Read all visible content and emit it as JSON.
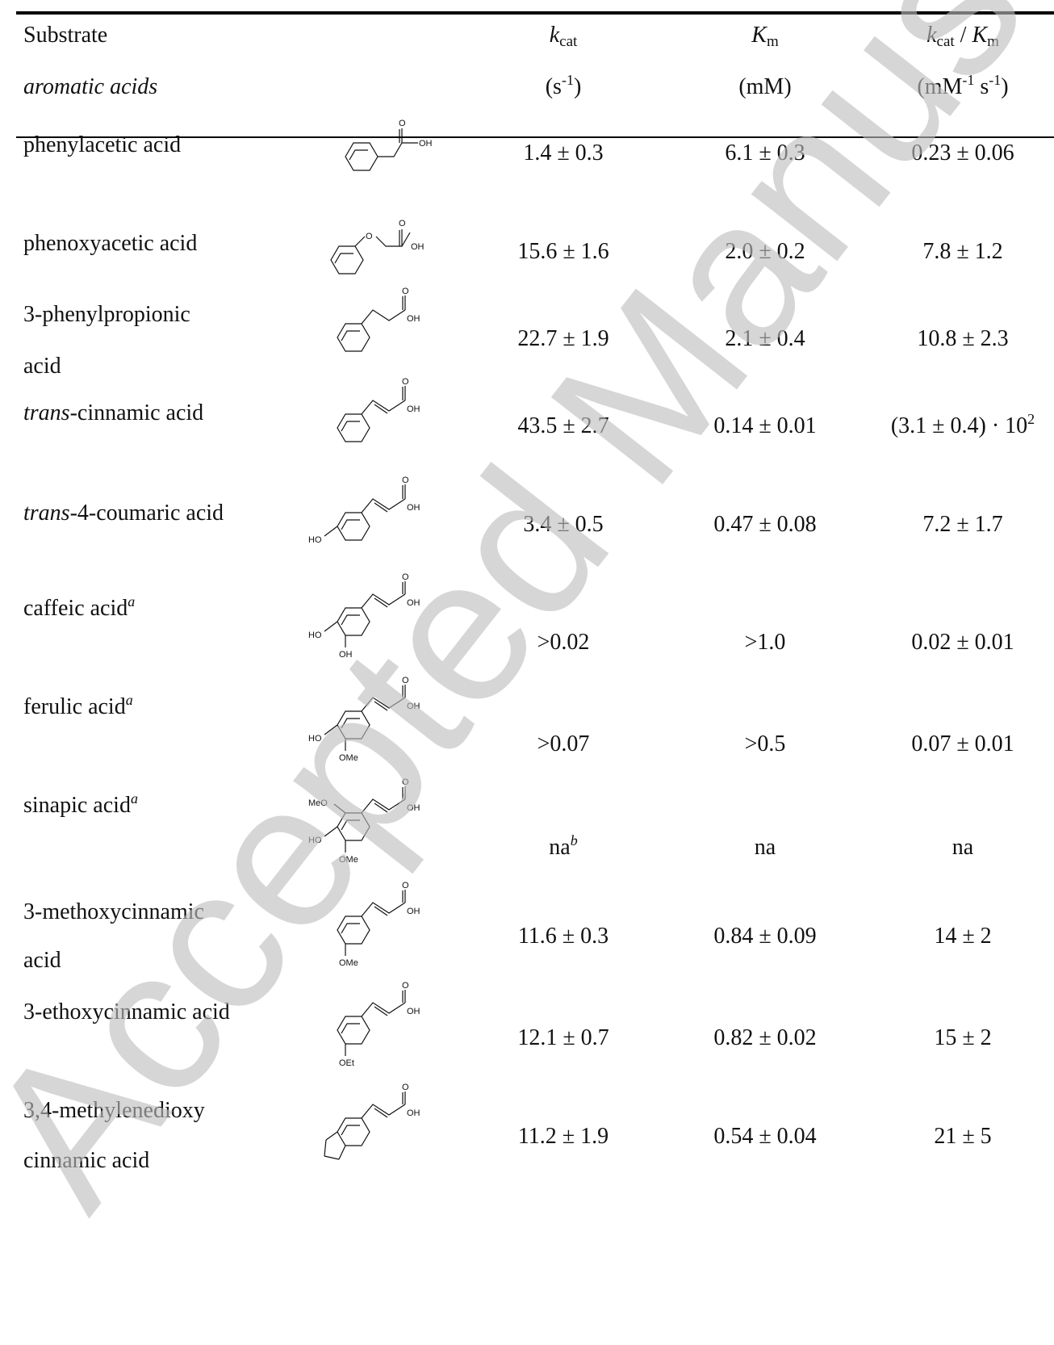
{
  "header": {
    "substrate": "Substrate",
    "group": "aromatic acids",
    "kcat_k": "k",
    "kcat_sub": "cat",
    "km_k": "K",
    "km_sub": "m",
    "ratio_k1": "k",
    "ratio_sub1": "cat",
    "ratio_sep": " / ",
    "ratio_k2": "K",
    "ratio_sub2": "m",
    "unit_kcat_pre": "(s",
    "unit_kcat_sup": "-1",
    "unit_kcat_post": ")",
    "unit_km": "(mM)",
    "unit_ratio_pre": "(mM",
    "unit_ratio_sup1": "-1",
    "unit_ratio_mid": " s",
    "unit_ratio_sup2": "-1",
    "unit_ratio_post": ")"
  },
  "rows": [
    {
      "l1": "phenylacetic acid",
      "l2": "",
      "kcat": "1.4 ± 0.3",
      "km": "6.1 ± 0.3",
      "ratio": "0.23 ± 0.06"
    },
    {
      "l1": "phenoxyacetic acid",
      "l2": "",
      "kcat": "15.6 ± 1.6",
      "km": "2.0 ± 0.2",
      "ratio": "7.8 ± 1.2"
    },
    {
      "l1": "3-phenylpropionic",
      "l2": "acid",
      "kcat": "22.7 ± 1.9",
      "km": "2.1 ± 0.4",
      "ratio": "10.8 ± 2.3"
    },
    {
      "l1_it": "trans",
      "l1": "-cinnamic acid",
      "l2": "",
      "kcat": "43.5 ± 2.7",
      "km": "0.14 ± 0.01",
      "ratio": "(3.1 ± 0.4) · 10",
      "ratio_sup": "2"
    },
    {
      "l1_it": "trans",
      "l1": "-4-coumaric acid",
      "l2": "",
      "kcat": "3.4 ± 0.5",
      "km": "0.47 ± 0.08",
      "ratio": "7.2 ± 1.7"
    },
    {
      "l1": "caffeic acid",
      "fn": "a",
      "l2": "",
      "kcat": ">0.02",
      "km": ">1.0",
      "ratio": "0.02 ± 0.01"
    },
    {
      "l1": "ferulic acid",
      "fn": "a",
      "l2": "",
      "kcat": ">0.07",
      "km": ">0.5",
      "ratio": "0.07 ± 0.01"
    },
    {
      "l1": "sinapic acid",
      "fn": "a",
      "l2": "",
      "kcat": "na",
      "kcat_fn": "b",
      "km": "na",
      "ratio": "na"
    },
    {
      "l1": "3-methoxycinnamic",
      "l2": "acid",
      "kcat": "11.6 ± 0.3",
      "km": "0.84 ± 0.09",
      "ratio": "14 ± 2"
    },
    {
      "l1": "3-ethoxycinnamic acid",
      "l2": "",
      "kcat": "12.1 ± 0.7",
      "km": "0.82 ± 0.02",
      "ratio": "15 ± 2"
    },
    {
      "l1": "3,4-methylenedioxy",
      "l2": "cinnamic acid",
      "kcat": "11.2 ± 1.9",
      "km": "0.54 ± 0.04",
      "ratio": "21 ± 5"
    }
  ],
  "structure_labels": {
    "O": "O",
    "OH": "OH",
    "HO": "HO",
    "OMe": "OMe",
    "MeO": "MeO",
    "OEt": "OEt"
  },
  "watermark": "Accepted Manuscript"
}
